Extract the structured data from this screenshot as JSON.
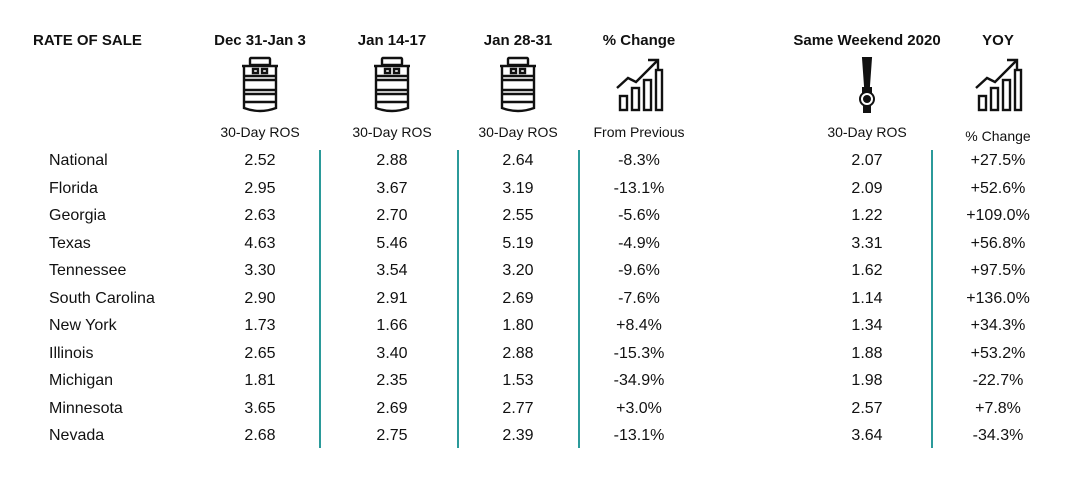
{
  "header": {
    "title": "RATE OF SALE",
    "columns": [
      {
        "title": "Dec 31-Jan 3",
        "sub": "30-Day ROS",
        "icon": "keg-icon"
      },
      {
        "title": "Jan 14-17",
        "sub": "30-Day ROS",
        "icon": "keg-icon"
      },
      {
        "title": "Jan 28-31",
        "sub": "30-Day ROS",
        "icon": "keg-icon"
      },
      {
        "title": "% Change",
        "sub": "From Previous",
        "icon": "growth-chart-icon"
      },
      {
        "title": "Same Weekend 2020",
        "sub": "30-Day ROS",
        "icon": "beer-tap-icon"
      },
      {
        "title": "YOY",
        "sub": "% Change",
        "icon": "growth-chart-icon"
      }
    ]
  },
  "rows": [
    {
      "label": "National",
      "values": [
        "2.52",
        "2.88",
        "2.64",
        "-8.3%",
        "2.07",
        "+27.5%"
      ]
    },
    {
      "label": "Florida",
      "values": [
        "2.95",
        "3.67",
        "3.19",
        "-13.1%",
        "2.09",
        "+52.6%"
      ]
    },
    {
      "label": "Georgia",
      "values": [
        "2.63",
        "2.70",
        "2.55",
        "-5.6%",
        "1.22",
        "+109.0%"
      ]
    },
    {
      "label": "Texas",
      "values": [
        "4.63",
        "5.46",
        "5.19",
        "-4.9%",
        "3.31",
        "+56.8%"
      ]
    },
    {
      "label": "Tennessee",
      "values": [
        "3.30",
        "3.54",
        "3.20",
        "-9.6%",
        "1.62",
        "+97.5%"
      ]
    },
    {
      "label": "South Carolina",
      "values": [
        "2.90",
        "2.91",
        "2.69",
        "-7.6%",
        "1.14",
        "+136.0%"
      ]
    },
    {
      "label": "New York",
      "values": [
        "1.73",
        "1.66",
        "1.80",
        "+8.4%",
        "1.34",
        "+34.3%"
      ]
    },
    {
      "label": "Illinois",
      "values": [
        "2.65",
        "3.40",
        "2.88",
        "-15.3%",
        "1.88",
        "+53.2%"
      ]
    },
    {
      "label": "Michigan",
      "values": [
        "1.81",
        "2.35",
        "1.53",
        "-34.9%",
        "1.98",
        "-22.7%"
      ]
    },
    {
      "label": "Minnesota",
      "values": [
        "3.65",
        "2.69",
        "2.77",
        "+3.0%",
        "2.57",
        "+7.8%"
      ]
    },
    {
      "label": "Nevada",
      "values": [
        "2.68",
        "2.75",
        "2.39",
        "-13.1%",
        "3.64",
        "-34.3%"
      ]
    }
  ],
  "chart_data": {
    "type": "table",
    "title": "RATE OF SALE",
    "columns": [
      "Dec 31-Jan 3",
      "Jan 14-17",
      "Jan 28-31",
      "% Change",
      "Same Weekend 2020",
      "YOY"
    ],
    "subheaders": [
      "30-Day ROS",
      "30-Day ROS",
      "30-Day ROS",
      "From Previous",
      "30-Day ROS",
      "% Change"
    ],
    "rows": [
      "National",
      "Florida",
      "Georgia",
      "Texas",
      "Tennessee",
      "South Carolina",
      "New York",
      "Illinois",
      "Michigan",
      "Minnesota",
      "Nevada"
    ],
    "series": [
      {
        "name": "Dec 31-Jan 3",
        "values": [
          2.52,
          2.95,
          2.63,
          4.63,
          3.3,
          2.9,
          1.73,
          2.65,
          1.81,
          3.65,
          2.68
        ]
      },
      {
        "name": "Jan 14-17",
        "values": [
          2.88,
          3.67,
          2.7,
          5.46,
          3.54,
          2.91,
          1.66,
          3.4,
          2.35,
          2.69,
          2.75
        ]
      },
      {
        "name": "Jan 28-31",
        "values": [
          2.64,
          3.19,
          2.55,
          5.19,
          3.2,
          2.69,
          1.8,
          2.88,
          1.53,
          2.77,
          2.39
        ]
      },
      {
        "name": "% Change",
        "values": [
          -8.3,
          -13.1,
          -5.6,
          -4.9,
          -9.6,
          -7.6,
          8.4,
          -15.3,
          -34.9,
          3.0,
          -13.1
        ]
      },
      {
        "name": "Same Weekend 2020",
        "values": [
          2.07,
          2.09,
          1.22,
          3.31,
          1.62,
          1.14,
          1.34,
          1.88,
          1.98,
          2.57,
          3.64
        ]
      },
      {
        "name": "YOY",
        "values": [
          27.5,
          52.6,
          109.0,
          56.8,
          97.5,
          136.0,
          34.3,
          53.2,
          -22.7,
          7.8,
          -34.3
        ]
      }
    ]
  },
  "colors": {
    "divider": "#2b9a9a",
    "text": "#111111"
  }
}
